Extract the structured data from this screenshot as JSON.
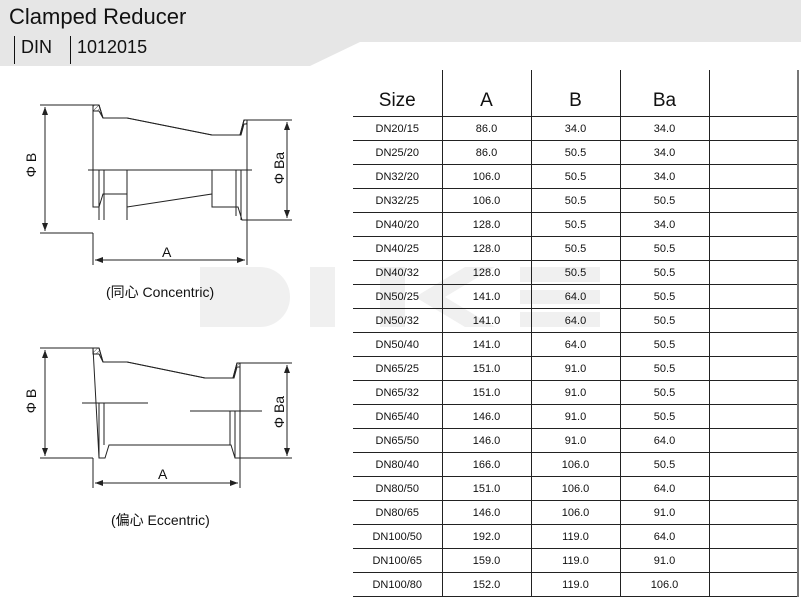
{
  "header": {
    "title": "Clamped Reducer",
    "standard": "DIN",
    "code": "1012015"
  },
  "drawings": {
    "concentric": {
      "caption": "(同心 Concentric)",
      "dim_b": "Φ B",
      "dim_ba": "Φ Ba",
      "dim_a": "A"
    },
    "eccentric": {
      "caption": "(偏心 Eccentric)",
      "dim_b": "Φ B",
      "dim_ba": "Φ Ba",
      "dim_a": "A"
    }
  },
  "table": {
    "headers": [
      "Size",
      "A",
      "B",
      "Ba",
      ""
    ],
    "rows": [
      [
        "DN20/15",
        "86.0",
        "34.0",
        "34.0"
      ],
      [
        "DN25/20",
        "86.0",
        "50.5",
        "34.0"
      ],
      [
        "DN32/20",
        "106.0",
        "50.5",
        "34.0"
      ],
      [
        "DN32/25",
        "106.0",
        "50.5",
        "50.5"
      ],
      [
        "DN40/20",
        "128.0",
        "50.5",
        "34.0"
      ],
      [
        "DN40/25",
        "128.0",
        "50.5",
        "50.5"
      ],
      [
        "DN40/32",
        "128.0",
        "50.5",
        "50.5"
      ],
      [
        "DN50/25",
        "141.0",
        "64.0",
        "50.5"
      ],
      [
        "DN50/32",
        "141.0",
        "64.0",
        "50.5"
      ],
      [
        "DN50/40",
        "141.0",
        "64.0",
        "50.5"
      ],
      [
        "DN65/25",
        "151.0",
        "91.0",
        "50.5"
      ],
      [
        "DN65/32",
        "151.0",
        "91.0",
        "50.5"
      ],
      [
        "DN65/40",
        "146.0",
        "91.0",
        "50.5"
      ],
      [
        "DN65/50",
        "146.0",
        "91.0",
        "64.0"
      ],
      [
        "DN80/40",
        "166.0",
        "106.0",
        "50.5"
      ],
      [
        "DN80/50",
        "151.0",
        "106.0",
        "64.0"
      ],
      [
        "DN80/65",
        "146.0",
        "106.0",
        "91.0"
      ],
      [
        "DN100/50",
        "192.0",
        "119.0",
        "64.0"
      ],
      [
        "DN100/65",
        "159.0",
        "119.0",
        "91.0"
      ],
      [
        "DN100/80",
        "152.0",
        "119.0",
        "106.0"
      ]
    ]
  },
  "colors": {
    "header_band": "#e6e6e6",
    "line": "#222222"
  }
}
